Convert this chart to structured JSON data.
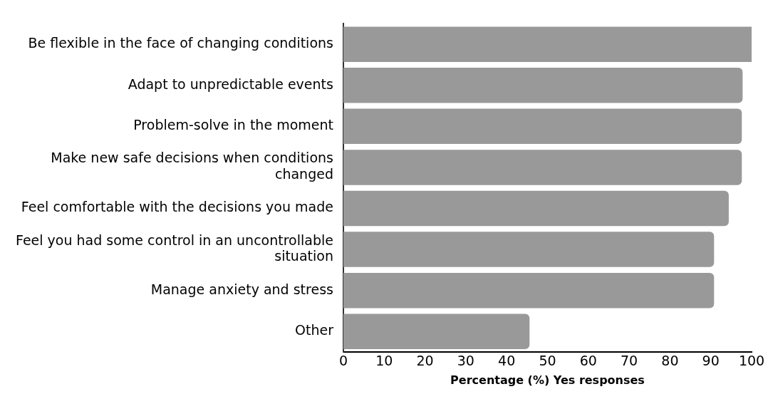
{
  "chart_data": {
    "type": "bar",
    "orientation": "horizontal",
    "xlabel": "Percentage (%) Yes responses",
    "categories": [
      "Be flexible in the face of changing conditions",
      "Adapt to unpredictable events",
      "Problem-solve in the moment",
      "Make new safe decisions when conditions changed",
      "Feel comfortable with the decisions you made",
      "Feel you had some control in an uncontrollable situation",
      "Manage anxiety and stress",
      "Other"
    ],
    "values": [
      100,
      97.8,
      97.6,
      97.6,
      94.4,
      90.8,
      90.8,
      45.6
    ],
    "color": "#999999",
    "xlim": [
      0,
      100
    ],
    "xticks": [
      0,
      10,
      20,
      30,
      40,
      50,
      60,
      70,
      80,
      90,
      100
    ],
    "grid": false
  }
}
